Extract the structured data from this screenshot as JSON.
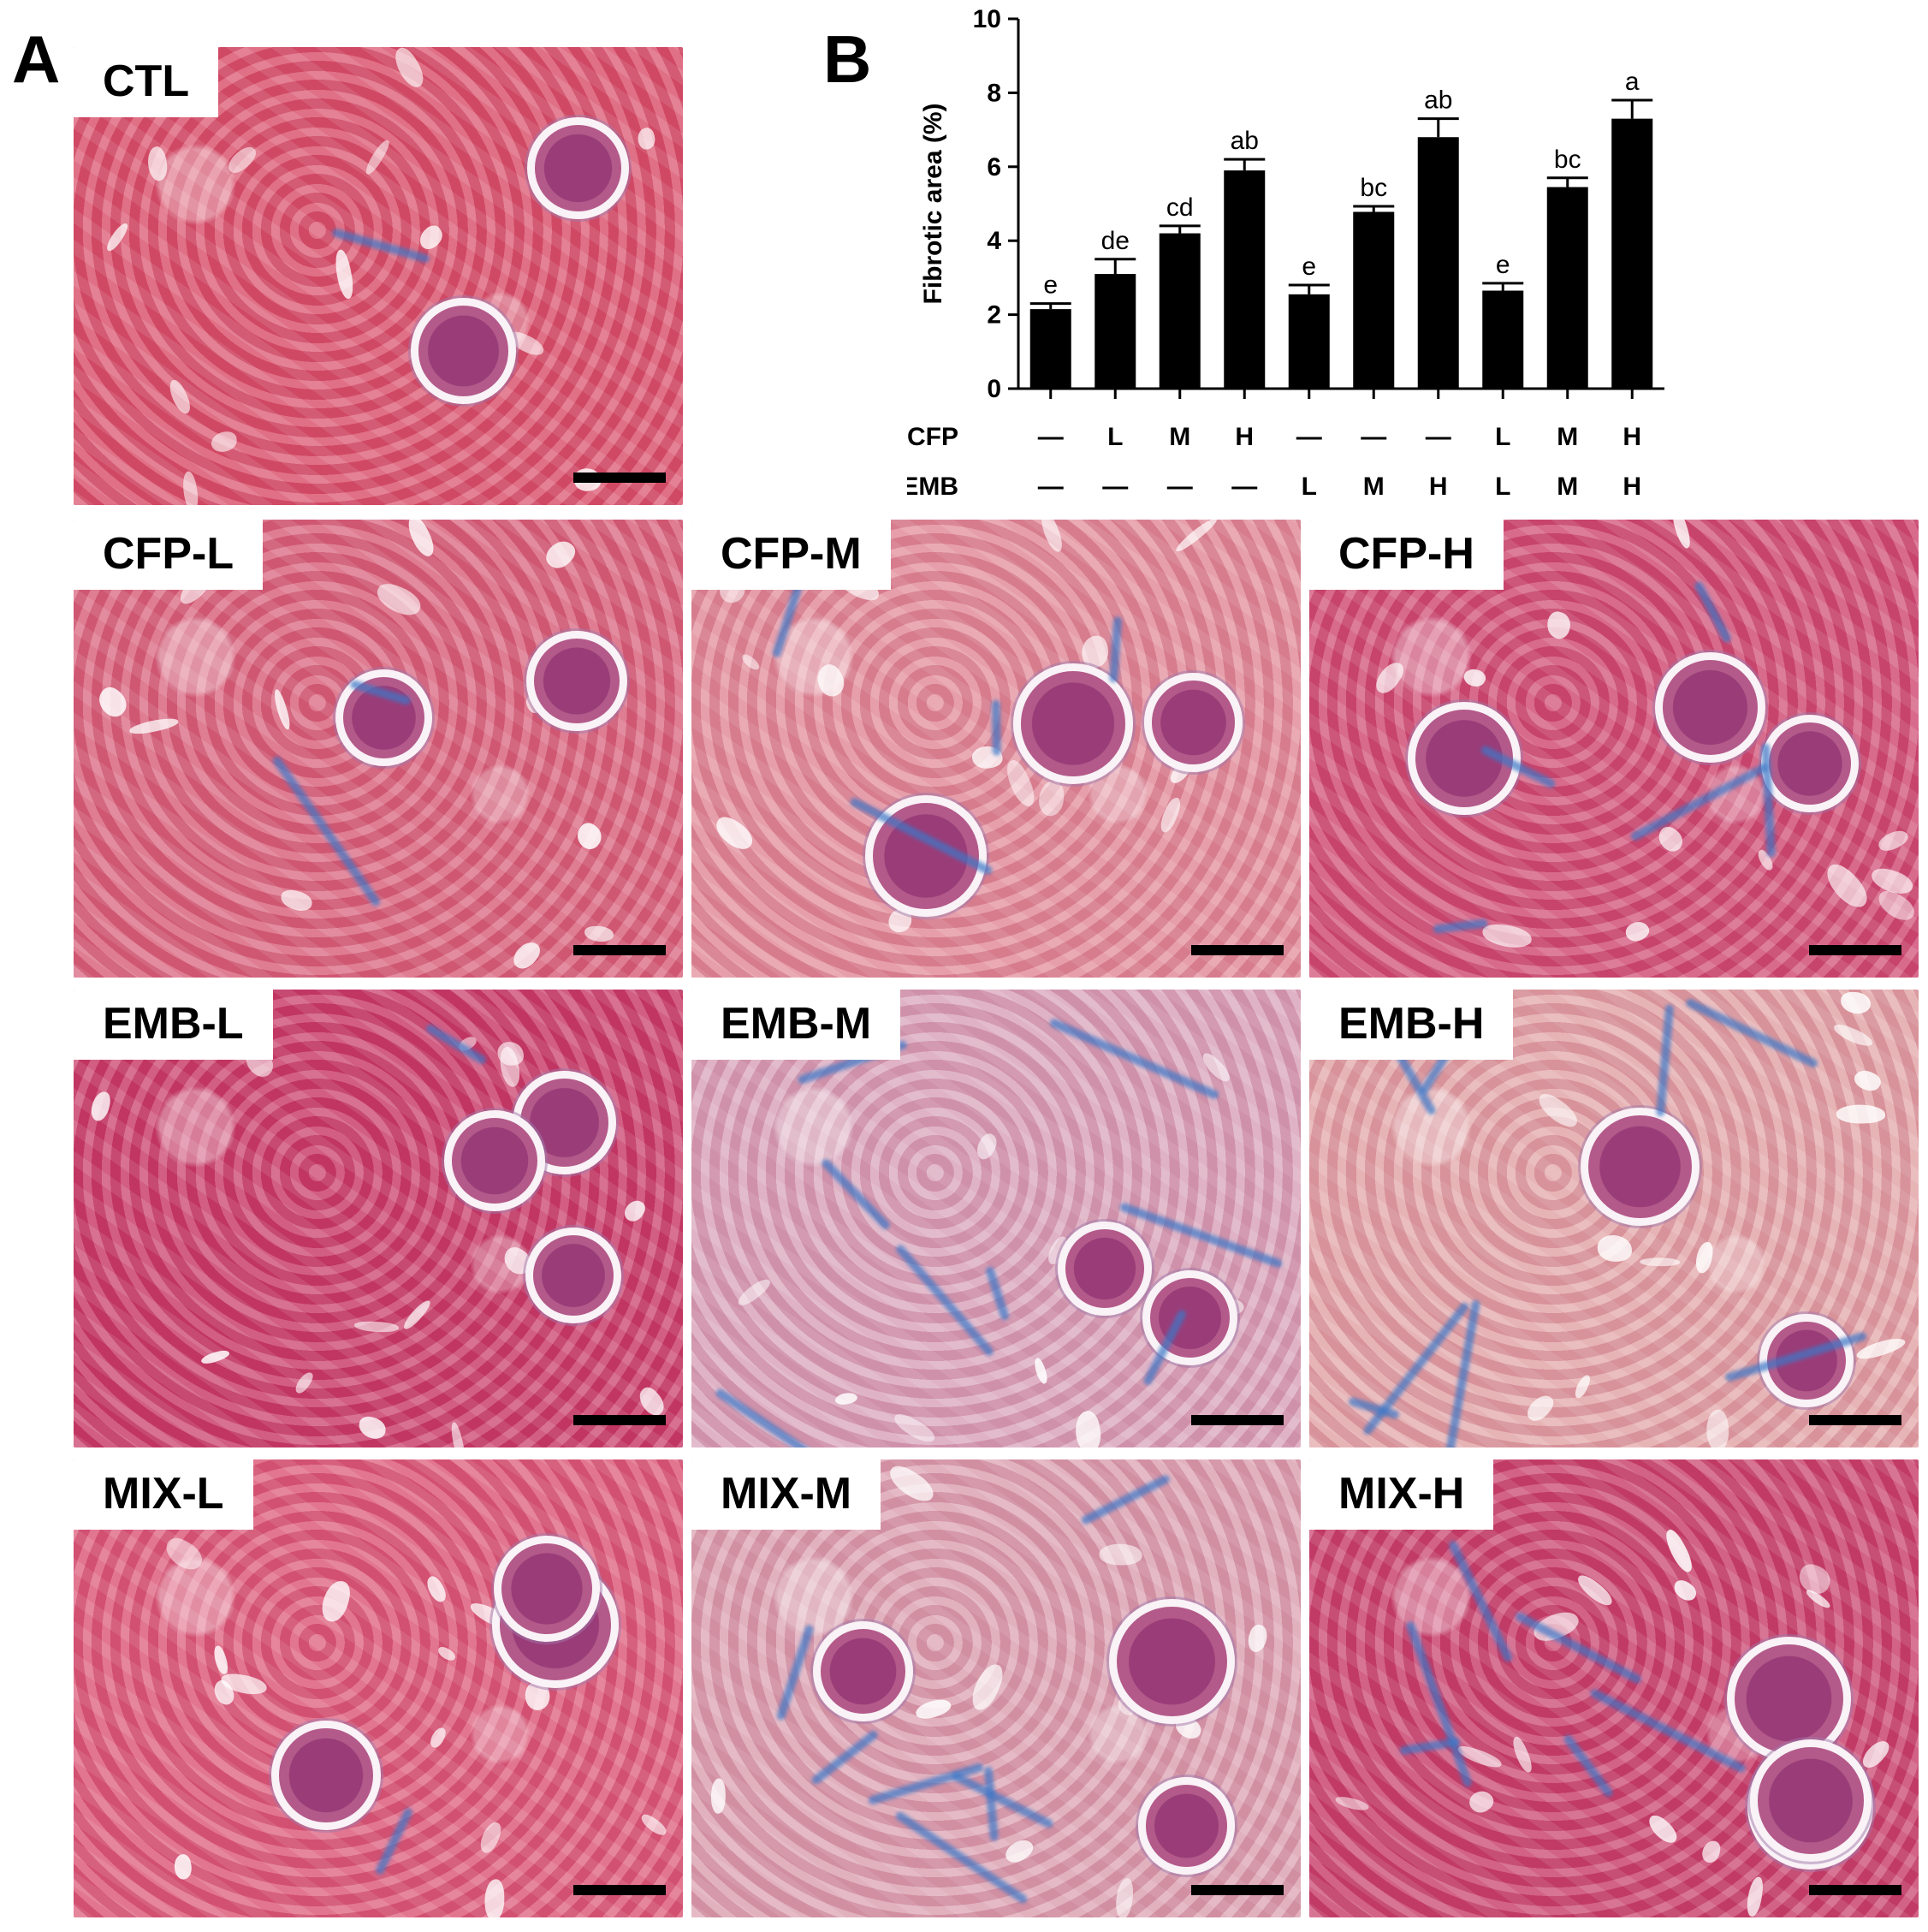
{
  "panels": {
    "a_letter": "A",
    "b_letter": "B"
  },
  "tiles": [
    {
      "id": "ctl",
      "label": "CTL",
      "tone": "#d9506a",
      "fibrosis": 0.05
    },
    {
      "id": "cfp-l",
      "label": "CFP-L",
      "tone": "#d8607a",
      "fibrosis": 0.12
    },
    {
      "id": "cfp-m",
      "label": "CFP-M",
      "tone": "#e18a98",
      "fibrosis": 0.3
    },
    {
      "id": "cfp-h",
      "label": "CFP-H",
      "tone": "#cf4a72",
      "fibrosis": 0.35
    },
    {
      "id": "emb-l",
      "label": "EMB-L",
      "tone": "#c83a68",
      "fibrosis": 0.08
    },
    {
      "id": "emb-m",
      "label": "EMB-M",
      "tone": "#d8a2b8",
      "fibrosis": 0.6
    },
    {
      "id": "emb-h",
      "label": "EMB-H",
      "tone": "#e2a4a6",
      "fibrosis": 0.55
    },
    {
      "id": "mix-l",
      "label": "MIX-L",
      "tone": "#dc5878",
      "fibrosis": 0.1
    },
    {
      "id": "mix-m",
      "label": "MIX-M",
      "tone": "#dba0b0",
      "fibrosis": 0.5
    },
    {
      "id": "mix-h",
      "label": "MIX-H",
      "tone": "#c8406c",
      "fibrosis": 0.4
    }
  ],
  "chart_data": {
    "type": "bar",
    "ylabel": "Fibrotic area (%)",
    "ylim": [
      0,
      10
    ],
    "yticks": [
      "0",
      "2",
      "4",
      "6",
      "8",
      "10"
    ],
    "bar_color": "#000000",
    "series": [
      {
        "values": [
          2.15,
          3.1,
          4.2,
          5.9,
          2.55,
          4.78,
          6.8,
          2.65,
          5.45,
          7.3
        ],
        "errors": [
          0.15,
          0.4,
          0.2,
          0.3,
          0.25,
          0.15,
          0.5,
          0.2,
          0.25,
          0.5
        ],
        "significance": [
          "e",
          "de",
          "cd",
          "ab",
          "e",
          "bc",
          "ab",
          "e",
          "bc",
          "a"
        ]
      }
    ],
    "factor_rows": [
      {
        "name": "CFP",
        "levels": [
          "—",
          "L",
          "M",
          "H",
          "—",
          "—",
          "—",
          "L",
          "M",
          "H"
        ]
      },
      {
        "name": "EMB",
        "levels": [
          "—",
          "—",
          "—",
          "—",
          "L",
          "M",
          "H",
          "L",
          "M",
          "H"
        ]
      }
    ]
  }
}
